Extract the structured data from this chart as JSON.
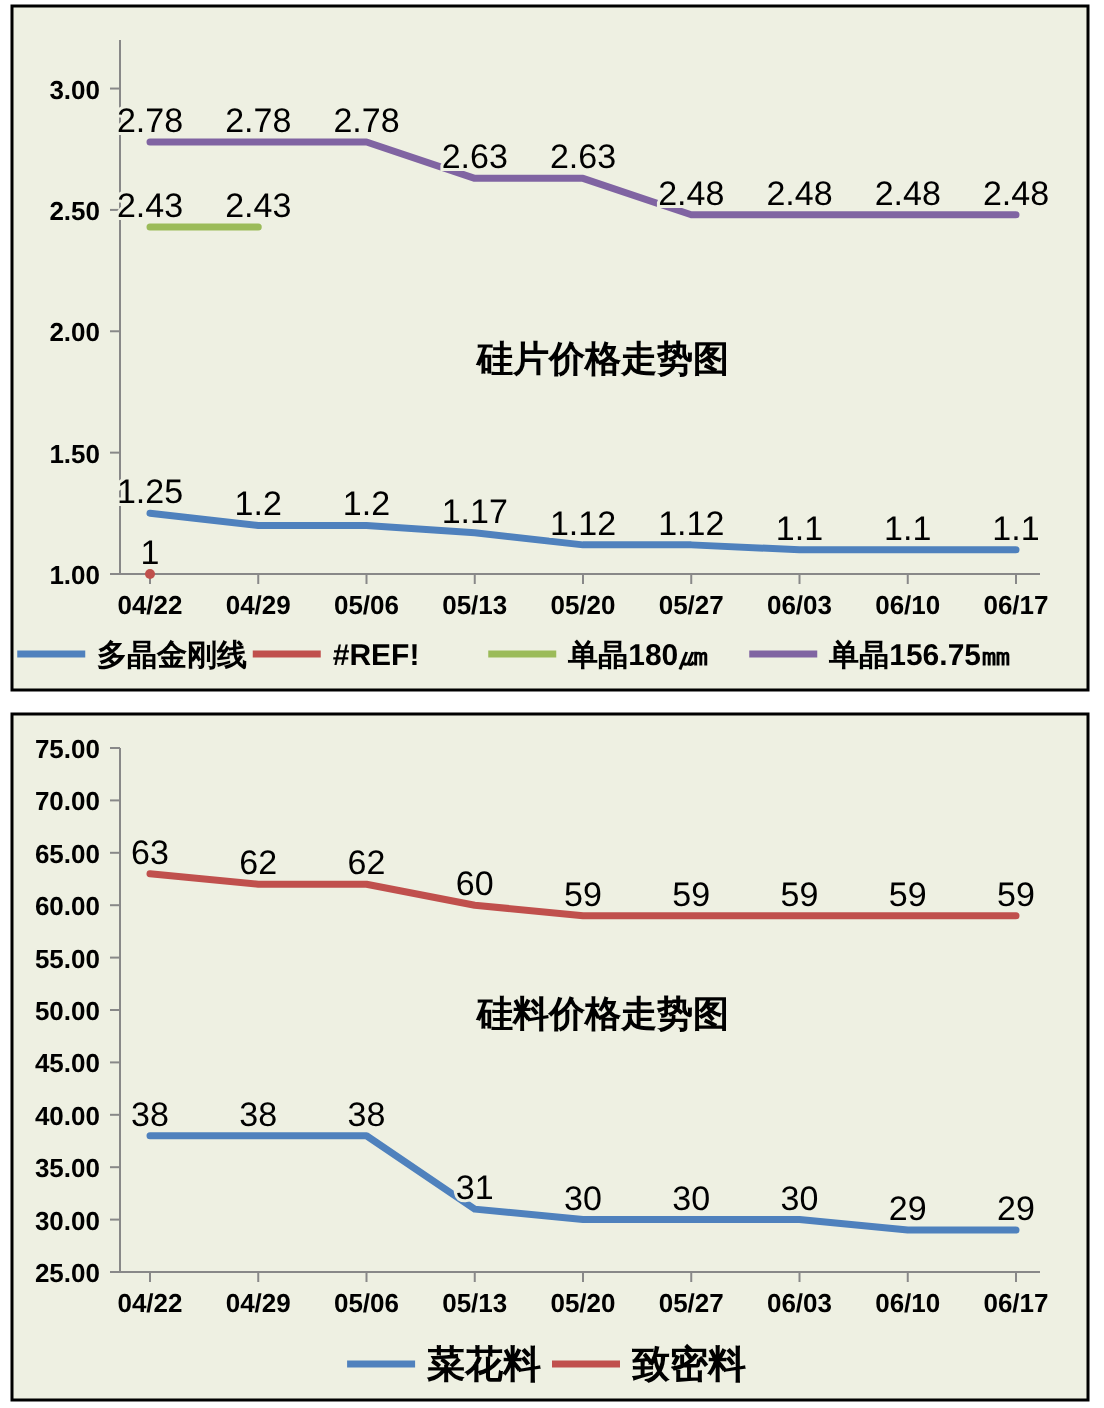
{
  "chart_data": [
    {
      "type": "line",
      "title": "硅片价格走势图",
      "categories": [
        "04/22",
        "04/29",
        "05/06",
        "05/13",
        "05/20",
        "05/27",
        "06/03",
        "06/10",
        "06/17"
      ],
      "series": [
        {
          "name": "多晶金刚线",
          "color": "#4f81bd",
          "values": [
            1.25,
            1.2,
            1.2,
            1.17,
            1.12,
            1.12,
            1.1,
            1.1,
            1.1
          ],
          "value_labels": [
            "1.25",
            "1.2",
            "1.2",
            "1.17",
            "1.12",
            "1.12",
            "1.1",
            "1.1",
            "1.1"
          ]
        },
        {
          "name": "#REF!",
          "color": "#c0504d",
          "marker": "circle",
          "values": [
            1,
            null,
            null,
            null,
            null,
            null,
            null,
            null,
            null
          ],
          "value_labels": [
            "1",
            null,
            null,
            null,
            null,
            null,
            null,
            null,
            null
          ]
        },
        {
          "name": "单晶180㎛",
          "color": "#9bbb59",
          "values": [
            2.43,
            2.43,
            null,
            null,
            null,
            null,
            null,
            null,
            null
          ],
          "value_labels": [
            "2.43",
            "2.43",
            null,
            null,
            null,
            null,
            null,
            null,
            null
          ]
        },
        {
          "name": "单晶156.75㎜",
          "color": "#8064a2",
          "values": [
            2.78,
            2.78,
            2.78,
            2.63,
            2.63,
            2.48,
            2.48,
            2.48,
            2.48
          ],
          "value_labels": [
            "2.78",
            "2.78",
            "2.78",
            "2.63",
            "2.63",
            "2.48",
            "2.48",
            "2.48",
            "2.48"
          ]
        }
      ],
      "ylim": [
        1,
        3.2
      ],
      "yticks": [
        {
          "value": 1,
          "label": "1.00"
        },
        {
          "value": 1.5,
          "label": "1.50"
        },
        {
          "value": 2,
          "label": "2.00"
        },
        {
          "value": 2.5,
          "label": "2.50"
        },
        {
          "value": 3,
          "label": "3.00"
        }
      ],
      "legend": "bottom",
      "grid": false
    },
    {
      "type": "line",
      "title": "硅料价格走势图",
      "categories": [
        "04/22",
        "04/29",
        "05/06",
        "05/13",
        "05/20",
        "05/27",
        "06/03",
        "06/10",
        "06/17"
      ],
      "series": [
        {
          "name": "菜花料",
          "color": "#4f81bd",
          "values": [
            38,
            38,
            38,
            31,
            30,
            30,
            30,
            29,
            29
          ],
          "value_labels": [
            "38",
            "38",
            "38",
            "31",
            "30",
            "30",
            "30",
            "29",
            "29"
          ]
        },
        {
          "name": "致密料",
          "color": "#c0504d",
          "values": [
            63,
            62,
            62,
            60,
            59,
            59,
            59,
            59,
            59
          ],
          "value_labels": [
            "63",
            "62",
            "62",
            "60",
            "59",
            "59",
            "59",
            "59",
            "59"
          ]
        }
      ],
      "ylim": [
        25,
        75
      ],
      "yticks": [
        {
          "value": 25,
          "label": "25.00"
        },
        {
          "value": 30,
          "label": "30.00"
        },
        {
          "value": 35,
          "label": "35.00"
        },
        {
          "value": 40,
          "label": "40.00"
        },
        {
          "value": 45,
          "label": "45.00"
        },
        {
          "value": 50,
          "label": "50.00"
        },
        {
          "value": 55,
          "label": "55.00"
        },
        {
          "value": 60,
          "label": "60.00"
        },
        {
          "value": 65,
          "label": "65.00"
        },
        {
          "value": 70,
          "label": "70.00"
        },
        {
          "value": 75,
          "label": "75.00"
        }
      ],
      "legend": "bottom",
      "grid": false
    }
  ]
}
